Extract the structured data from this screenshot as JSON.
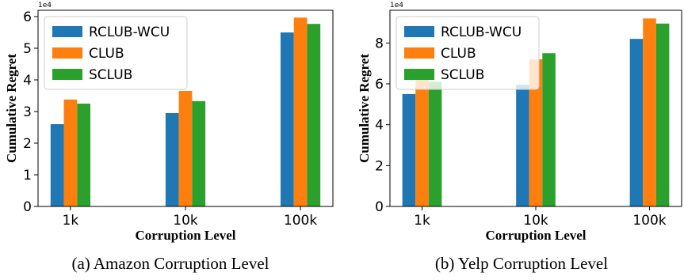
{
  "chart_data": [
    {
      "type": "bar",
      "caption": "(a) Amazon Corruption Level",
      "categories": [
        "1k",
        "10k",
        "100k"
      ],
      "series": [
        {
          "name": "RCLUB-WCU",
          "color": "#1f77b4",
          "values": [
            2.6,
            2.95,
            5.5
          ]
        },
        {
          "name": "CLUB",
          "color": "#ff7f0e",
          "values": [
            3.38,
            3.65,
            5.97
          ]
        },
        {
          "name": "SCLUB",
          "color": "#2ca02c",
          "values": [
            3.25,
            3.33,
            5.77
          ]
        }
      ],
      "xlabel": "Corruption Level",
      "ylabel": "Cumulative Regret",
      "exponent": "1e4",
      "ylim": [
        0,
        6.2
      ],
      "yticks": [
        "0",
        "1",
        "2",
        "3",
        "4",
        "5",
        "6"
      ],
      "legend": "top-left",
      "grid": false
    },
    {
      "type": "bar",
      "caption": "(b) Yelp Corruption Level",
      "categories": [
        "1k",
        "10k",
        "100k"
      ],
      "series": [
        {
          "name": "RCLUB-WCU",
          "color": "#1f77b4",
          "values": [
            5.5,
            5.95,
            8.2
          ]
        },
        {
          "name": "CLUB",
          "color": "#ff7f0e",
          "values": [
            6.2,
            7.2,
            9.2
          ]
        },
        {
          "name": "SCLUB",
          "color": "#2ca02c",
          "values": [
            6.1,
            7.5,
            8.95
          ]
        }
      ],
      "xlabel": "Corruption Level",
      "ylabel": "Cumulative Regret",
      "exponent": "1e4",
      "ylim": [
        0,
        9.6
      ],
      "yticks": [
        "0",
        "2",
        "4",
        "6",
        "8"
      ],
      "legend": "top-left",
      "grid": false
    }
  ]
}
